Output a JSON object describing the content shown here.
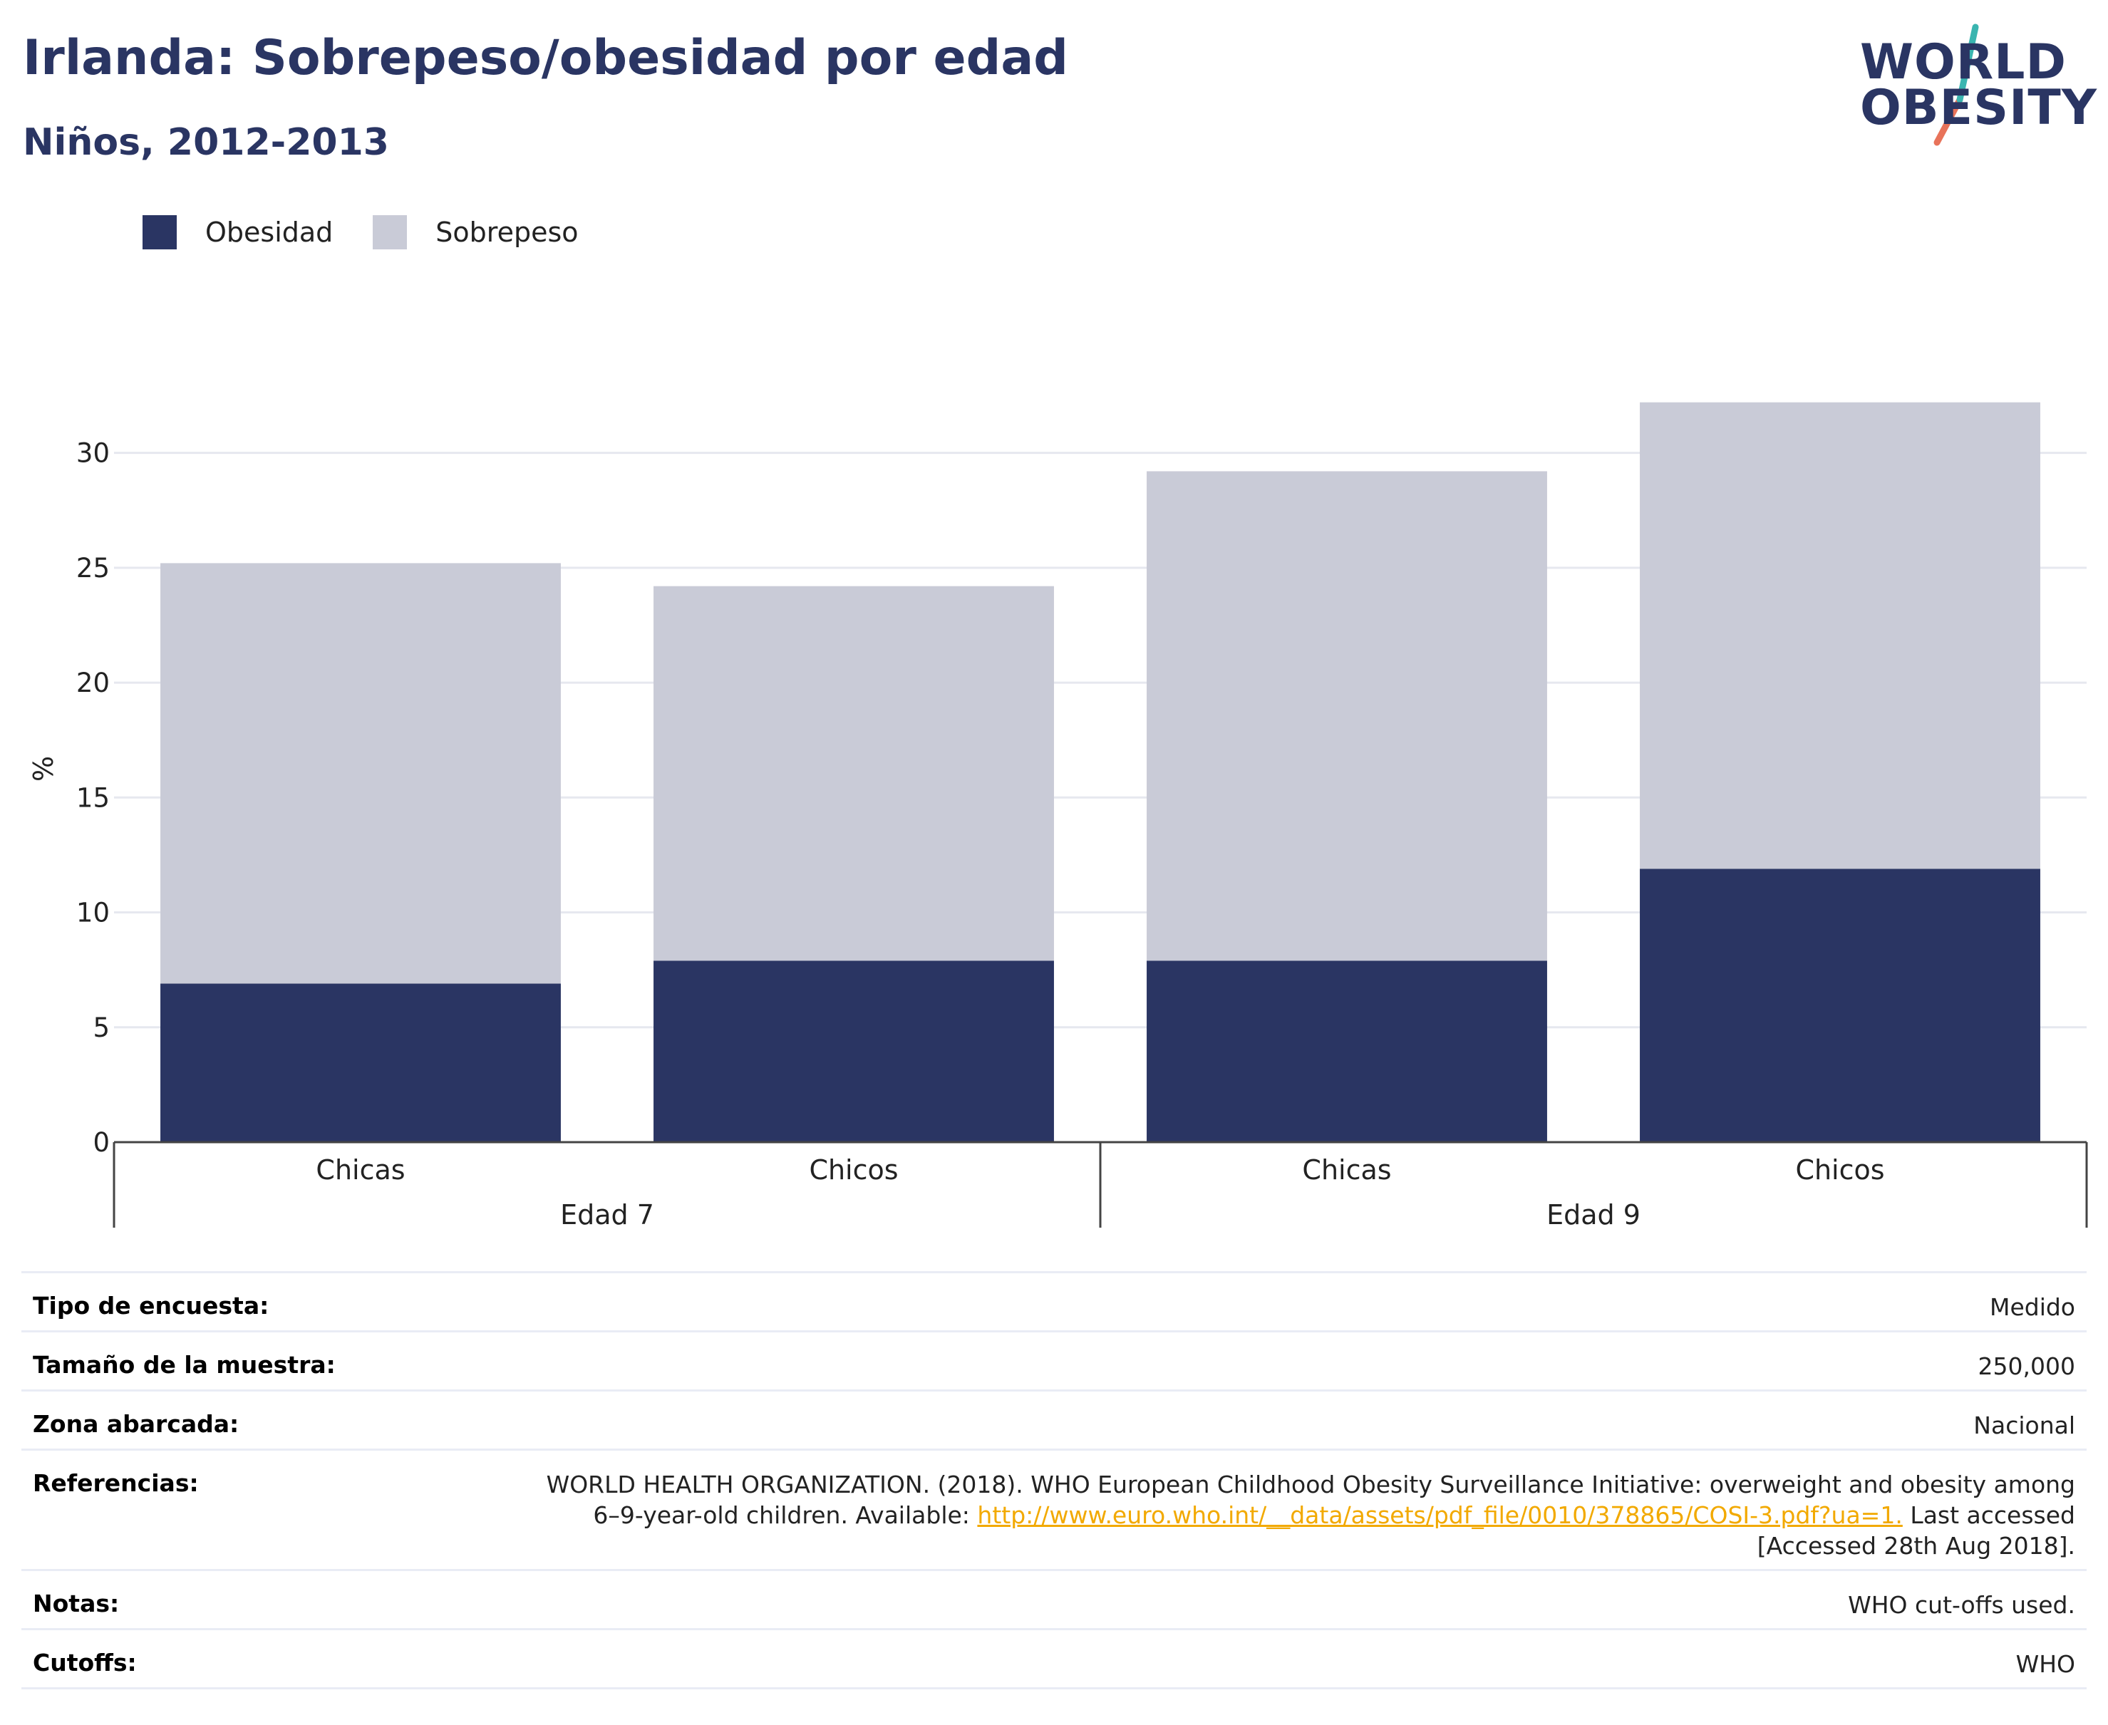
{
  "header": {
    "title": "Irlanda: Sobrepeso/obesidad por edad",
    "subtitle": "Niños, 2012-2013"
  },
  "logo": {
    "line1": "WORLD",
    "line2": "OBESITY",
    "accent_teal": "#3ab5b0",
    "accent_coral": "#e8735a"
  },
  "legend": [
    {
      "label": "Obesidad",
      "color": "#2a3563"
    },
    {
      "label": "Sobrepeso",
      "color": "#c9cbd7"
    }
  ],
  "chart_data": {
    "type": "bar",
    "stacked": true,
    "ylabel": "%",
    "ylim": [
      0,
      32.5
    ],
    "yticks": [
      0,
      5,
      10,
      15,
      20,
      25,
      30
    ],
    "grid": true,
    "legend_position": "top-left",
    "categories": [
      "Chicas",
      "Chicos",
      "Chicas",
      "Chicos"
    ],
    "groups": [
      {
        "label": "Edad 7",
        "categories": [
          "Chicas",
          "Chicos"
        ]
      },
      {
        "label": "Edad 9",
        "categories": [
          "Chicas",
          "Chicos"
        ]
      }
    ],
    "series": [
      {
        "name": "Obesidad",
        "color": "#2a3563",
        "values": [
          6.9,
          7.9,
          7.9,
          11.9
        ]
      },
      {
        "name": "Sobrepeso",
        "color": "#c9cbd7",
        "values": [
          18.3,
          16.3,
          21.3,
          20.3
        ]
      }
    ]
  },
  "info": {
    "survey_type_label": "Tipo de encuesta:",
    "survey_type_value": "Medido",
    "sample_size_label": "Tamaño de la muestra:",
    "sample_size_value": "250,000",
    "area_label": "Zona abarcada:",
    "area_value": "Nacional",
    "references_label": "Referencias:",
    "references_line1": "WORLD HEALTH ORGANIZATION. (2018). WHO European Childhood Obesity Surveillance Initiative: overweight and obesity among",
    "references_line2_prefix": "6–9-year-old children. Available: ",
    "references_link": "http://www.euro.who.int/__data/assets/pdf_file/0010/378865/COSI-3.pdf?ua=1.",
    "references_line2_suffix": " Last accessed",
    "references_line3": "[Accessed 28th Aug 2018].",
    "notes_label": "Notas:",
    "notes_value": "WHO cut-offs used.",
    "cutoffs_label": "Cutoffs:",
    "cutoffs_value": "WHO"
  }
}
